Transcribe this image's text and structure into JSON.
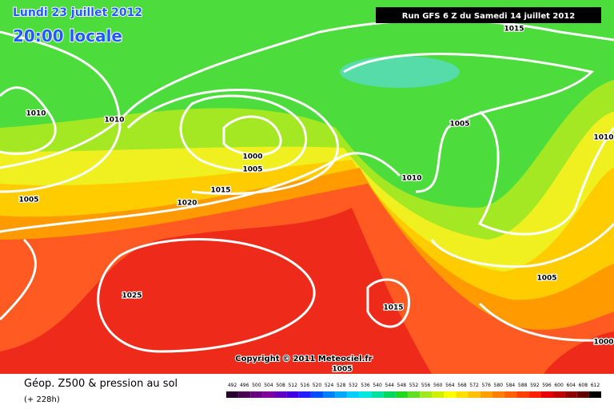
{
  "header": {
    "date": "Lundi 23 juillet 2012",
    "time": "20:00 locale",
    "run": "Run GFS 6 Z du Samedi 14 juillet 2012"
  },
  "isobar_labels": [
    "1010",
    "1010",
    "1000",
    "1005",
    "1015",
    "1020",
    "1005",
    "1025",
    "1010",
    "1005",
    "1015",
    "1010",
    "1005",
    "1015",
    "1000",
    "1005"
  ],
  "copyright": "Copyright © 2011 Meteociel.fr",
  "footer": {
    "title": "Géop. Z500 & pression au sol",
    "subtitle": "(+ 228h)"
  },
  "legend": {
    "values": [
      492,
      496,
      500,
      504,
      508,
      512,
      516,
      520,
      524,
      528,
      532,
      536,
      540,
      544,
      548,
      552,
      556,
      560,
      564,
      568,
      572,
      576,
      580,
      584,
      588,
      592,
      596,
      600,
      604,
      608,
      612
    ],
    "colors": [
      "#2a0030",
      "#4a0050",
      "#6a0080",
      "#8000a0",
      "#6000c0",
      "#4000e0",
      "#2020ff",
      "#0050ff",
      "#0080ff",
      "#00a8ff",
      "#00d0ff",
      "#00e8e0",
      "#00e0a0",
      "#00d860",
      "#20d820",
      "#60e020",
      "#a0e820",
      "#d0f000",
      "#ffff00",
      "#ffe000",
      "#ffc000",
      "#ffa000",
      "#ff8000",
      "#ff6000",
      "#ff4000",
      "#ff2000",
      "#e80000",
      "#c00000",
      "#900000",
      "#600000",
      "#000000"
    ]
  }
}
